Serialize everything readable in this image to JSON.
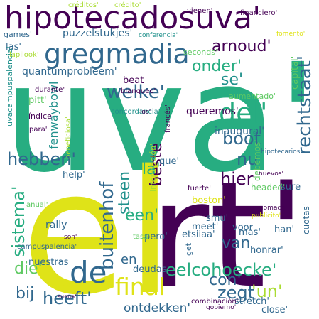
{
  "palette": {
    "dark_purple": "#440154",
    "indigo": "#3b528b",
    "slate_blue": "#31688e",
    "teal": "#21918c",
    "green": "#27ad81",
    "light_green": "#5ec962",
    "yellow_green": "#aadc32",
    "yellow": "#dfe318"
  },
  "words": [
    {
      "text": "uva'",
      "color": "#27ad81"
    },
    {
      "text": "el",
      "color": "#dfe318"
    },
    {
      "text": "rt'",
      "color": "#440154"
    },
    {
      "text": "hipotecadosuva'",
      "color": "#440154"
    },
    {
      "text": "gregmadia",
      "color": "#31688e"
    },
    {
      "text": "de",
      "color": "#31688e"
    },
    {
      "text": "final",
      "color": "#dfe318"
    },
    {
      "text": "del'",
      "color": "#27ad81"
    },
    {
      "text": "buitenhof",
      "color": "#31688e"
    },
    {
      "text": "rechtstaat'",
      "color": "#31688e"
    },
    {
      "text": "eelcohoecke'",
      "color": "#27ad81"
    },
    {
      "text": "zegt",
      "color": "#31688e"
    },
    {
      "text": "'un'",
      "color": "#aadc32"
    },
    {
      "text": "heeft'",
      "color": "#31688e"
    },
    {
      "text": "welke'",
      "color": "#31688e"
    },
    {
      "text": "hebben'",
      "color": "#31688e"
    },
    {
      "text": "sistema'",
      "color": "#27ad81"
    },
    {
      "text": "arnoud'",
      "color": "#440154"
    },
    {
      "text": "onder'",
      "color": "#27ad81"
    },
    {
      "text": "boot",
      "color": "#31688e"
    },
    {
      "text": "nu",
      "color": "#31688e"
    },
    {
      "text": "hier",
      "color": "#440154"
    },
    {
      "text": "se'",
      "color": "#21918c"
    },
    {
      "text": "beste",
      "color": "#440154"
    },
    {
      "text": "steen",
      "color": "#21918c"
    },
    {
      "text": "la'",
      "color": "#27ad81"
    },
    {
      "text": "een'",
      "color": "#27ad81"
    },
    {
      "text": "van",
      "color": "#31688e"
    },
    {
      "text": "die'",
      "color": "#5ec962"
    },
    {
      "text": "bij",
      "color": "#31688e"
    },
    {
      "text": "con'",
      "color": "#31688e"
    },
    {
      "text": "en",
      "color": "#31688e"
    },
    {
      "text": "ontdekken'",
      "color": "#31688e"
    },
    {
      "text": "puzzelstukjes'",
      "color": "#31688e"
    },
    {
      "text": "quantumprobleem'",
      "color": "#31688e"
    },
    {
      "text": "fenwaybowl",
      "color": "#21918c"
    },
    {
      "text": "queremos'",
      "color": "#440154"
    },
    {
      "text": "inaugural'",
      "color": "#31688e"
    },
    {
      "text": "beat",
      "color": "#440154"
    },
    {
      "text": "pitt'",
      "color": "#5ec962"
    },
    {
      "text": "las'",
      "color": "#31688e"
    },
    {
      "text": "games'",
      "color": "#31688e"
    },
    {
      "text": "seconds'",
      "color": "#5ec962"
    },
    {
      "text": "capital'",
      "color": "#5ec962"
    },
    {
      "text": "aumentado'",
      "color": "#5ec962"
    },
    {
      "text": "help'",
      "color": "#31688e"
    },
    {
      "text": "que'",
      "color": "#31688e"
    },
    {
      "text": "headed'",
      "color": "#5ec962"
    },
    {
      "text": "boston'",
      "color": "#dfe318"
    },
    {
      "text": "debemos'",
      "color": "#5ec962"
    },
    {
      "text": "sure",
      "color": "#31688e"
    },
    {
      "text": "smu'",
      "color": "#31688e"
    },
    {
      "text": "rally",
      "color": "#31688e"
    },
    {
      "text": "pero'",
      "color": "#31688e"
    },
    {
      "text": "meet'",
      "color": "#31688e"
    },
    {
      "text": "voor",
      "color": "#31688e"
    },
    {
      "text": "han'",
      "color": "#31688e"
    },
    {
      "text": "mas'",
      "color": "#31688e"
    },
    {
      "text": "honrar'",
      "color": "#31688e"
    },
    {
      "text": "etsiiaa'",
      "color": "#31688e"
    },
    {
      "text": "cuotas'",
      "color": "#31688e"
    },
    {
      "text": "deudas",
      "color": "#31688e"
    },
    {
      "text": "nuestras",
      "color": "#31688e"
    },
    {
      "text": "stretch'",
      "color": "#31688e"
    },
    {
      "text": "close'",
      "color": "#31688e"
    },
    {
      "text": "get",
      "color": "#31688e"
    },
    {
      "text": "campuspalencia'",
      "color": "#31688e"
    },
    {
      "text": "uvacampuspalencia'",
      "color": "#21918c"
    },
    {
      "text": "índice'",
      "color": "#440154"
    },
    {
      "text": "para'",
      "color": "#440154"
    },
    {
      "text": "durante'",
      "color": "#440154"
    },
    {
      "text": "lapilook'",
      "color": "#aadc32"
    },
    {
      "text": "créditos'",
      "color": "#aadc32"
    },
    {
      "text": "crédito'",
      "color": "#aadc32"
    },
    {
      "text": "vienen'",
      "color": "#440154"
    },
    {
      "text": "conferencia'",
      "color": "#21918c"
    },
    {
      "text": "fomento'",
      "color": "#dfe318"
    },
    {
      "text": "francés'",
      "color": "#440154"
    },
    {
      "text": "concordancia'",
      "color": "#21918c"
    },
    {
      "text": "los'",
      "color": "#440154"
    },
    {
      "text": "blanqueo'",
      "color": "#440154"
    },
    {
      "text": "beneficiosa'",
      "color": "#aadc32"
    },
    {
      "text": "información'",
      "color": "#aadc32"
    },
    {
      "text": "fuerte'",
      "color": "#440154"
    },
    {
      "text": "nuevos'",
      "color": "#440154"
    },
    {
      "text": "hipotecarios'",
      "color": "#31688e"
    },
    {
      "text": "mauriciomacri'",
      "color": "#440154"
    },
    {
      "text": "publicito'",
      "color": "#dfe318"
    },
    {
      "text": "anual'",
      "color": "#5ec962"
    },
    {
      "text": "tasa'",
      "color": "#5ec962"
    },
    {
      "text": "financiero'",
      "color": "#440154"
    },
    {
      "text": "combinación'",
      "color": "#440154"
    },
    {
      "text": "gobierno'",
      "color": "#440154"
    },
    {
      "text": "modelo'",
      "color": "#dfe318"
    },
    {
      "text": "suena'",
      "color": "#440154"
    },
    {
      "text": "son'",
      "color": "#440154"
    }
  ]
}
